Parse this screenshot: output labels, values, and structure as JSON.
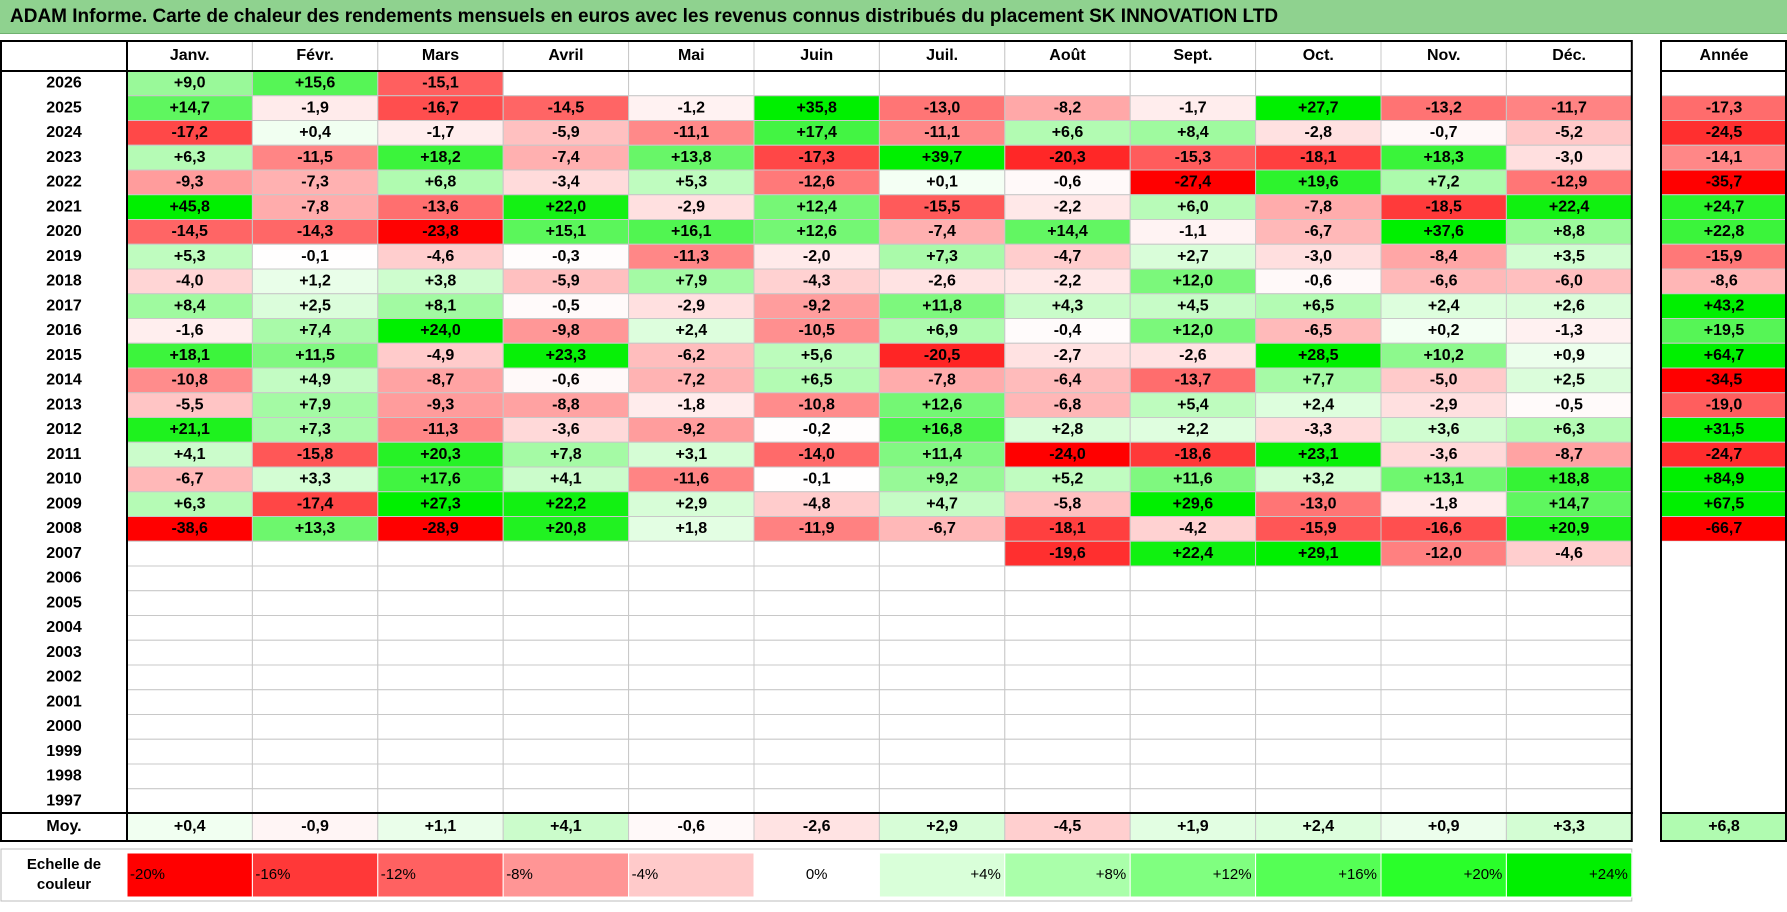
{
  "chart_data": {
    "type": "heatmap",
    "title": "ADAM Informe. Carte de chaleur des rendements mensuels en euros avec les revenus connus distribués du placement SK INNOVATION LTD",
    "months": [
      "Janv.",
      "Févr.",
      "Mars",
      "Avril",
      "Mai",
      "Juin",
      "Juil.",
      "Août",
      "Sept.",
      "Oct.",
      "Nov.",
      "Déc."
    ],
    "year_header": "Année",
    "rows": [
      {
        "year": "2026",
        "values": [
          "+9,0",
          "+15,6",
          "-15,1",
          "",
          "",
          "",
          "",
          "",
          "",
          "",
          "",
          ""
        ],
        "annual": ""
      },
      {
        "year": "2025",
        "values": [
          "+14,7",
          "-1,9",
          "-16,7",
          "-14,5",
          "-1,2",
          "+35,8",
          "-13,0",
          "-8,2",
          "-1,7",
          "+27,7",
          "-13,2",
          "-11,7"
        ],
        "annual": "-17,3"
      },
      {
        "year": "2024",
        "values": [
          "-17,2",
          "+0,4",
          "-1,7",
          "-5,9",
          "-11,1",
          "+17,4",
          "-11,1",
          "+6,6",
          "+8,4",
          "-2,8",
          "-0,7",
          "-5,2"
        ],
        "annual": "-24,5"
      },
      {
        "year": "2023",
        "values": [
          "+6,3",
          "-11,5",
          "+18,2",
          "-7,4",
          "+13,8",
          "-17,3",
          "+39,7",
          "-20,3",
          "-15,3",
          "-18,1",
          "+18,3",
          "-3,0"
        ],
        "annual": "-14,1"
      },
      {
        "year": "2022",
        "values": [
          "-9,3",
          "-7,3",
          "+6,8",
          "-3,4",
          "+5,3",
          "-12,6",
          "+0,1",
          "-0,6",
          "-27,4",
          "+19,6",
          "+7,2",
          "-12,9"
        ],
        "annual": "-35,7"
      },
      {
        "year": "2021",
        "values": [
          "+45,8",
          "-7,8",
          "-13,6",
          "+22,0",
          "-2,9",
          "+12,4",
          "-15,5",
          "-2,2",
          "+6,0",
          "-7,8",
          "-18,5",
          "+22,4"
        ],
        "annual": "+24,7"
      },
      {
        "year": "2020",
        "values": [
          "-14,5",
          "-14,3",
          "-23,8",
          "+15,1",
          "+16,1",
          "+12,6",
          "-7,4",
          "+14,4",
          "-1,1",
          "-6,7",
          "+37,6",
          "+8,8"
        ],
        "annual": "+22,8"
      },
      {
        "year": "2019",
        "values": [
          "+5,3",
          "-0,1",
          "-4,6",
          "-0,3",
          "-11,3",
          "-2,0",
          "+7,3",
          "-4,7",
          "+2,7",
          "-3,0",
          "-8,4",
          "+3,5"
        ],
        "annual": "-15,9"
      },
      {
        "year": "2018",
        "values": [
          "-4,0",
          "+1,2",
          "+3,8",
          "-5,9",
          "+7,9",
          "-4,3",
          "-2,6",
          "-2,2",
          "+12,0",
          "-0,6",
          "-6,6",
          "-6,0"
        ],
        "annual": "-8,6"
      },
      {
        "year": "2017",
        "values": [
          "+8,4",
          "+2,5",
          "+8,1",
          "-0,5",
          "-2,9",
          "-9,2",
          "+11,8",
          "+4,3",
          "+4,5",
          "+6,5",
          "+2,4",
          "+2,6"
        ],
        "annual": "+43,2"
      },
      {
        "year": "2016",
        "values": [
          "-1,6",
          "+7,4",
          "+24,0",
          "-9,8",
          "+2,4",
          "-10,5",
          "+6,9",
          "-0,4",
          "+12,0",
          "-6,5",
          "+0,2",
          "-1,3"
        ],
        "annual": "+19,5"
      },
      {
        "year": "2015",
        "values": [
          "+18,1",
          "+11,5",
          "-4,9",
          "+23,3",
          "-6,2",
          "+5,6",
          "-20,5",
          "-2,7",
          "-2,6",
          "+28,5",
          "+10,2",
          "+0,9"
        ],
        "annual": "+64,7"
      },
      {
        "year": "2014",
        "values": [
          "-10,8",
          "+4,9",
          "-8,7",
          "-0,6",
          "-7,2",
          "+6,5",
          "-7,8",
          "-6,4",
          "-13,7",
          "+7,7",
          "-5,0",
          "+2,5"
        ],
        "annual": "-34,5"
      },
      {
        "year": "2013",
        "values": [
          "-5,5",
          "+7,9",
          "-9,3",
          "-8,8",
          "-1,8",
          "-10,8",
          "+12,6",
          "-6,8",
          "+5,4",
          "+2,4",
          "-2,9",
          "-0,5"
        ],
        "annual": "-19,0"
      },
      {
        "year": "2012",
        "values": [
          "+21,1",
          "+7,3",
          "-11,3",
          "-3,6",
          "-9,2",
          "-0,2",
          "+16,8",
          "+2,8",
          "+2,2",
          "-3,3",
          "+3,6",
          "+6,3"
        ],
        "annual": "+31,5"
      },
      {
        "year": "2011",
        "values": [
          "+4,1",
          "-15,8",
          "+20,3",
          "+7,8",
          "+3,1",
          "-14,0",
          "+11,4",
          "-24,0",
          "-18,6",
          "+23,1",
          "-3,6",
          "-8,7"
        ],
        "annual": "-24,7"
      },
      {
        "year": "2010",
        "values": [
          "-6,7",
          "+3,3",
          "+17,6",
          "+4,1",
          "-11,6",
          "-0,1",
          "+9,2",
          "+5,2",
          "+11,6",
          "+3,2",
          "+13,1",
          "+18,8"
        ],
        "annual": "+84,9"
      },
      {
        "year": "2009",
        "values": [
          "+6,3",
          "-17,4",
          "+27,3",
          "+22,2",
          "+2,9",
          "-4,8",
          "+4,7",
          "-5,8",
          "+29,6",
          "-13,0",
          "-1,8",
          "+14,7"
        ],
        "annual": "+67,5"
      },
      {
        "year": "2008",
        "values": [
          "-38,6",
          "+13,3",
          "-28,9",
          "+20,8",
          "+1,8",
          "-11,9",
          "-6,7",
          "-18,1",
          "-4,2",
          "-15,9",
          "-16,6",
          "+20,9"
        ],
        "annual": "-66,7"
      },
      {
        "year": "2007",
        "values": [
          "",
          "",
          "",
          "",
          "",
          "",
          "",
          "-19,6",
          "+22,4",
          "+29,1",
          "-12,0",
          "-4,6"
        ],
        "annual": ""
      },
      {
        "year": "2006",
        "values": [
          "",
          "",
          "",
          "",
          "",
          "",
          "",
          "",
          "",
          "",
          "",
          ""
        ],
        "annual": ""
      },
      {
        "year": "2005",
        "values": [
          "",
          "",
          "",
          "",
          "",
          "",
          "",
          "",
          "",
          "",
          "",
          ""
        ],
        "annual": ""
      },
      {
        "year": "2004",
        "values": [
          "",
          "",
          "",
          "",
          "",
          "",
          "",
          "",
          "",
          "",
          "",
          ""
        ],
        "annual": ""
      },
      {
        "year": "2003",
        "values": [
          "",
          "",
          "",
          "",
          "",
          "",
          "",
          "",
          "",
          "",
          "",
          ""
        ],
        "annual": ""
      },
      {
        "year": "2002",
        "values": [
          "",
          "",
          "",
          "",
          "",
          "",
          "",
          "",
          "",
          "",
          "",
          ""
        ],
        "annual": ""
      },
      {
        "year": "2001",
        "values": [
          "",
          "",
          "",
          "",
          "",
          "",
          "",
          "",
          "",
          "",
          "",
          ""
        ],
        "annual": ""
      },
      {
        "year": "2000",
        "values": [
          "",
          "",
          "",
          "",
          "",
          "",
          "",
          "",
          "",
          "",
          "",
          ""
        ],
        "annual": ""
      },
      {
        "year": "1999",
        "values": [
          "",
          "",
          "",
          "",
          "",
          "",
          "",
          "",
          "",
          "",
          "",
          ""
        ],
        "annual": ""
      },
      {
        "year": "1998",
        "values": [
          "",
          "",
          "",
          "",
          "",
          "",
          "",
          "",
          "",
          "",
          "",
          ""
        ],
        "annual": ""
      },
      {
        "year": "1997",
        "values": [
          "",
          "",
          "",
          "",
          "",
          "",
          "",
          "",
          "",
          "",
          "",
          ""
        ],
        "annual": ""
      }
    ],
    "average": {
      "label": "Moy.",
      "values": [
        "+0,4",
        "-0,9",
        "+1,1",
        "+4,1",
        "-0,6",
        "-2,6",
        "+2,9",
        "-4,5",
        "+1,9",
        "+2,4",
        "+0,9",
        "+3,3"
      ],
      "annual": "+6,8"
    },
    "scale": {
      "label_lines": [
        "Echelle de",
        "couleur"
      ],
      "labels": [
        "-20%",
        "-16%",
        "-12%",
        "-8%",
        "-4%",
        "0%",
        "+4%",
        "+8%",
        "+12%",
        "+16%",
        "+20%",
        "+24%"
      ],
      "colors": [
        "#ff0000",
        "#ff3838",
        "#ff6161",
        "#ff9595",
        "#ffcaca",
        "#ffffff",
        "#d9ffd9",
        "#aaffaa",
        "#80ff80",
        "#55ff55",
        "#2aff2a",
        "#00f000"
      ]
    }
  }
}
